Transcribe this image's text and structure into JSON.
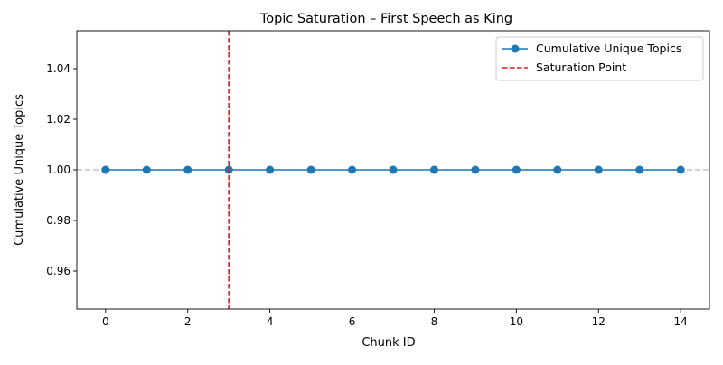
{
  "chart_data": {
    "type": "line",
    "title": "Topic Saturation – First Speech as King",
    "xlabel": "Chunk ID",
    "ylabel": "Cumulative Unique Topics",
    "x": [
      0,
      1,
      2,
      3,
      4,
      5,
      6,
      7,
      8,
      9,
      10,
      11,
      12,
      13,
      14
    ],
    "series": [
      {
        "name": "Cumulative Unique Topics",
        "values": [
          1,
          1,
          1,
          1,
          1,
          1,
          1,
          1,
          1,
          1,
          1,
          1,
          1,
          1,
          1
        ],
        "color": "#1f77b4",
        "marker": "circle"
      }
    ],
    "reference_lines": [
      {
        "name": "Saturation Point",
        "orientation": "vertical",
        "x": 3,
        "color": "#e41a1c",
        "style": "dashed"
      },
      {
        "name": "",
        "orientation": "horizontal",
        "y": 1.0,
        "color": "#bbbbbb",
        "style": "dashed"
      }
    ],
    "xlim": [
      -0.7,
      14.7
    ],
    "ylim": [
      0.945,
      1.055
    ],
    "x_ticks": [
      "0",
      "2",
      "4",
      "6",
      "8",
      "10",
      "12",
      "14"
    ],
    "y_ticks": [
      "0.96",
      "0.98",
      "1.00",
      "1.02",
      "1.04"
    ],
    "legend": {
      "position": "top-right",
      "entries": [
        "Cumulative Unique Topics",
        "Saturation Point"
      ]
    },
    "grid": false
  }
}
